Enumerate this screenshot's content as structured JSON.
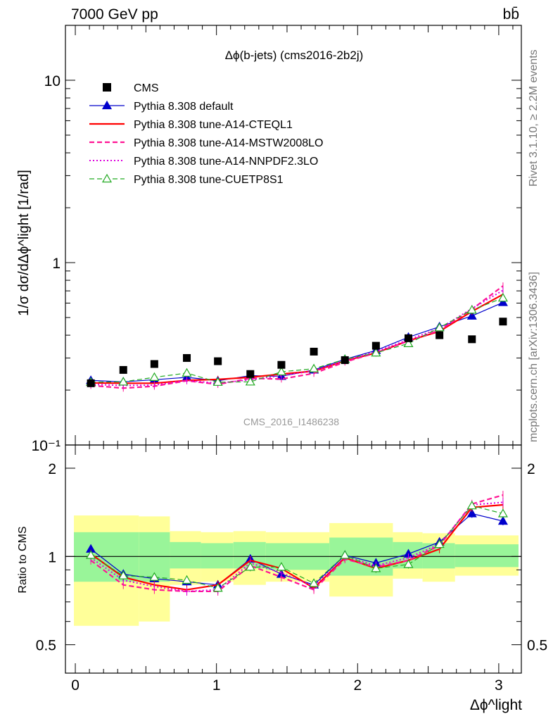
{
  "header": {
    "left": "7000 GeV pp",
    "right": "bb̄",
    "side_rivet": "Rivet 3.1.10, ≥ 2.2M events",
    "side_mcplots": "mcplots.cern.ch [arXiv:1306.3436]",
    "analysis_tag": "CMS_2016_I1486238"
  },
  "chart_data": {
    "type": "line",
    "title": "Δϕ(b-jets) (cms2016-2b2j)",
    "ylabel": "1/σ dσ/dΔϕ^light [1/rad]",
    "ratio_ylabel": "Ratio to CMS",
    "xlabel": "Δϕ^light",
    "xlim": [
      -0.07,
      3.16
    ],
    "ylim": [
      0.1,
      20
    ],
    "ylog": true,
    "ratio_ylim": [
      0.4,
      2.4
    ],
    "ratio_ylog": true,
    "x_ticks": [
      "0",
      "1",
      "2",
      "3"
    ],
    "y_ticks": [
      "10⁻¹",
      "1",
      "10"
    ],
    "ratio_y_ticks": [
      "0.5",
      "1",
      "2"
    ],
    "x": [
      0.11,
      0.34,
      0.56,
      0.79,
      1.01,
      1.24,
      1.46,
      1.69,
      1.91,
      2.13,
      2.36,
      2.58,
      2.81,
      3.03
    ],
    "data": {
      "name": "CMS",
      "values": [
        0.218,
        0.258,
        0.278,
        0.3,
        0.288,
        0.245,
        0.275,
        0.325,
        0.292,
        0.35,
        0.385,
        0.4,
        0.38,
        0.475
      ]
    },
    "band_edges": [
      -0.01,
      0.45,
      0.67,
      0.89,
      1.12,
      1.35,
      1.8,
      2.25,
      2.46,
      2.69,
      3.14
    ],
    "bands": {
      "yellow_lo": [
        0.58,
        0.6,
        0.8,
        0.82,
        0.8,
        0.82,
        0.73,
        0.84,
        0.82,
        0.86
      ],
      "yellow_hi": [
        1.38,
        1.37,
        1.22,
        1.21,
        1.22,
        1.21,
        1.3,
        1.21,
        1.2,
        1.18
      ],
      "green_lo": [
        0.82,
        0.82,
        0.91,
        0.91,
        0.91,
        0.9,
        0.86,
        0.91,
        0.91,
        0.92
      ],
      "green_hi": [
        1.21,
        1.21,
        1.12,
        1.11,
        1.12,
        1.11,
        1.16,
        1.12,
        1.11,
        1.1
      ]
    },
    "series": [
      {
        "name": "Pythia 8.308 default",
        "color": "#0000cc",
        "style": "solid",
        "marker": "triangle-filled",
        "values": [
          0.226,
          0.222,
          0.228,
          0.235,
          0.225,
          0.24,
          0.238,
          0.258,
          0.295,
          0.33,
          0.39,
          0.445,
          0.51,
          0.605
        ]
      },
      {
        "name": "Pythia 8.308 tune-A14-CTEQL1",
        "color": "#ff0000",
        "style": "solid",
        "marker": "none",
        "values": [
          0.219,
          0.218,
          0.218,
          0.226,
          0.229,
          0.235,
          0.245,
          0.254,
          0.289,
          0.32,
          0.373,
          0.42,
          0.54,
          0.67
        ]
      },
      {
        "name": "Pythia 8.308 tune-A14-MSTW2008LO",
        "color": "#ff1493",
        "style": "dashed",
        "marker": "none",
        "values": [
          0.212,
          0.205,
          0.21,
          0.225,
          0.215,
          0.232,
          0.23,
          0.247,
          0.285,
          0.32,
          0.372,
          0.425,
          0.555,
          0.745
        ]
      },
      {
        "name": "Pythia 8.308 tune-A14-NNPDF2.3LO",
        "color": "#dd00dd",
        "style": "dotted",
        "marker": "none",
        "values": [
          0.215,
          0.212,
          0.213,
          0.226,
          0.218,
          0.228,
          0.24,
          0.255,
          0.29,
          0.325,
          0.378,
          0.435,
          0.56,
          0.705
        ]
      },
      {
        "name": "Pythia 8.308 tune-CUETP8S1",
        "color": "#22aa22",
        "style": "dashed",
        "marker": "triangle-open",
        "values": [
          0.221,
          0.222,
          0.235,
          0.248,
          0.221,
          0.222,
          0.252,
          0.262,
          0.295,
          0.32,
          0.36,
          0.44,
          0.55,
          0.64
        ]
      }
    ],
    "ratios": {
      "Pythia 8.308 default": [
        1.06,
        0.87,
        0.84,
        0.82,
        0.8,
        0.98,
        0.87,
        0.8,
        1.01,
        0.95,
        1.02,
        1.12,
        1.4,
        1.32
      ],
      "Pythia 8.308 tune-A14-CTEQL1": [
        1.02,
        0.85,
        0.8,
        0.77,
        0.8,
        0.97,
        0.91,
        0.78,
        0.99,
        0.91,
        0.97,
        1.06,
        1.47,
        1.5
      ],
      "Pythia 8.308 tune-A14-MSTW2008LO": [
        0.97,
        0.8,
        0.77,
        0.76,
        0.76,
        0.93,
        0.85,
        0.77,
        0.98,
        0.92,
        0.97,
        1.09,
        1.51,
        1.62
      ],
      "Pythia 8.308 tune-A14-NNPDF2.3LO": [
        0.99,
        0.83,
        0.79,
        0.76,
        0.77,
        0.95,
        0.88,
        0.79,
        1.0,
        0.93,
        0.99,
        1.1,
        1.5,
        1.53
      ],
      "Pythia 8.308 tune-CUETP8S1": [
        1.01,
        0.86,
        0.85,
        0.83,
        0.78,
        0.92,
        0.92,
        0.81,
        1.01,
        0.91,
        0.94,
        1.1,
        1.49,
        1.4
      ]
    }
  }
}
